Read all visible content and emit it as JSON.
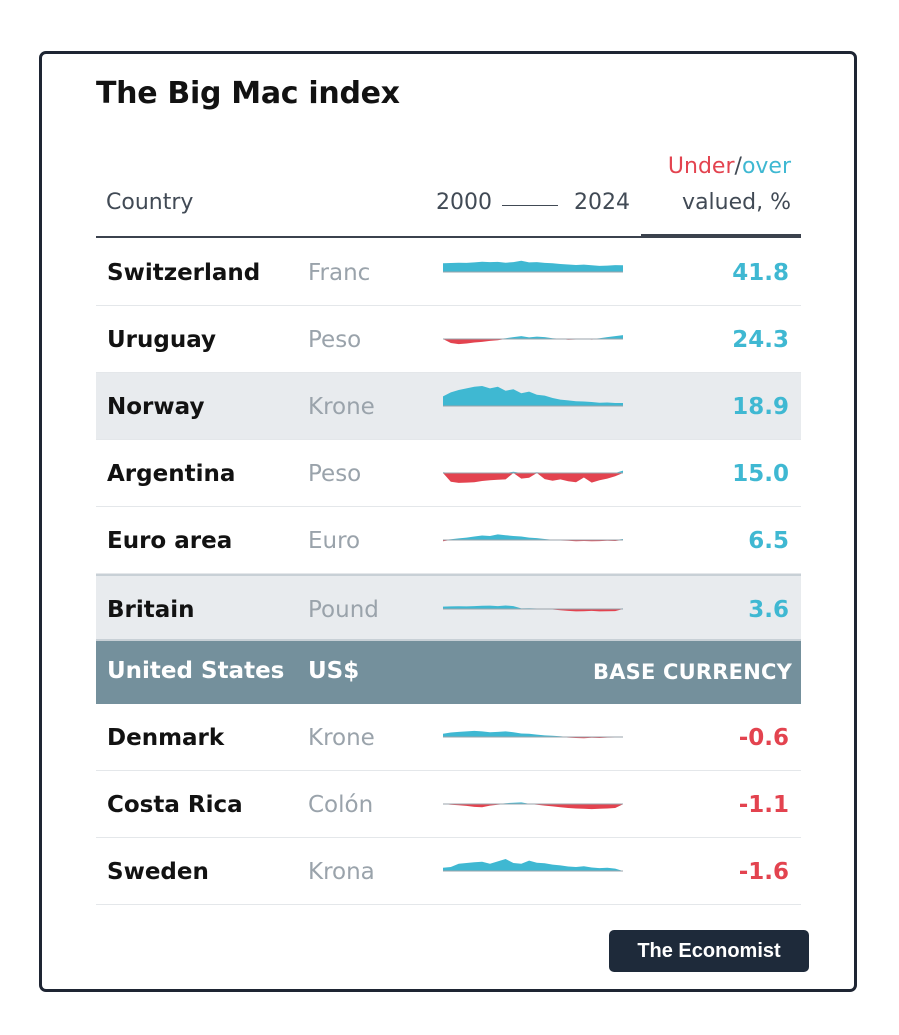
{
  "title": "The Big Mac index",
  "header": {
    "country": "Country",
    "year_start": "2000",
    "year_end": "2024",
    "under": "Under",
    "slash": "/",
    "over": "over",
    "valued": "valued, %"
  },
  "base_row": {
    "country": "United States",
    "currency": "US$",
    "label": "BASE CURRENCY"
  },
  "footer_brand": "The Economist",
  "colors": {
    "over": "#3fb8d2",
    "under": "#e3434f",
    "base_row": "#74909c",
    "badge": "#1e2a3a"
  },
  "chart_data": {
    "type": "table",
    "title": "The Big Mac index",
    "x_range": [
      "2000",
      "2024"
    ],
    "rows": [
      {
        "country": "Switzerland",
        "currency": "Franc",
        "value": "41.8",
        "number": 41.8,
        "trend": [
          55,
          56,
          58,
          57,
          60,
          64,
          62,
          63,
          58,
          62,
          70,
          60,
          62,
          57,
          55,
          50,
          47,
          44,
          46,
          42,
          38,
          40,
          43,
          41.8
        ]
      },
      {
        "country": "Uruguay",
        "currency": "Peso",
        "value": "24.3",
        "number": 24.3,
        "trend": [
          0,
          -25,
          -32,
          -28,
          -22,
          -18,
          -12,
          -8,
          5,
          12,
          18,
          10,
          15,
          12,
          5,
          2,
          -5,
          -3,
          2,
          -4,
          5,
          12,
          18,
          24.3
        ]
      },
      {
        "country": "Norway",
        "currency": "Krone",
        "value": "18.9",
        "number": 18.9,
        "trend": [
          60,
          85,
          100,
          110,
          120,
          125,
          110,
          120,
          95,
          105,
          80,
          90,
          70,
          65,
          50,
          40,
          35,
          30,
          28,
          25,
          20,
          22,
          19,
          18.9
        ]
      },
      {
        "country": "Argentina",
        "currency": "Peso",
        "value": "15.0",
        "number": 15.0,
        "trend": [
          5,
          -55,
          -62,
          -60,
          -58,
          -50,
          -45,
          -42,
          -40,
          8,
          -35,
          -30,
          5,
          -38,
          -48,
          -40,
          -52,
          -58,
          -28,
          -60,
          -45,
          -35,
          -20,
          15.0
        ]
      },
      {
        "country": "Euro area",
        "currency": "Euro",
        "value": "6.5",
        "number": 6.5,
        "trend": [
          -8,
          5,
          10,
          15,
          22,
          28,
          25,
          35,
          30,
          25,
          22,
          15,
          12,
          6,
          2,
          -3,
          -5,
          -8,
          -6,
          -8,
          -7,
          -5,
          -6,
          6.5
        ]
      },
      {
        "country": "Britain",
        "currency": "Pound",
        "value": "3.6",
        "number": 3.6,
        "trend": [
          15,
          16,
          17,
          16,
          18,
          20,
          21,
          18,
          22,
          18,
          4,
          5,
          3,
          2,
          -3,
          -8,
          -12,
          -15,
          -14,
          -12,
          -15,
          -14,
          -13,
          3.6
        ]
      },
      {
        "country": "Denmark",
        "currency": "Krone",
        "value": "-0.6",
        "number": -0.6,
        "trend": [
          20,
          28,
          32,
          35,
          38,
          35,
          30,
          32,
          35,
          30,
          22,
          20,
          15,
          10,
          8,
          5,
          -4,
          -6,
          -8,
          -5,
          -6,
          -4,
          -3,
          -0.6
        ]
      },
      {
        "country": "Costa Rica",
        "currency": "Colón",
        "value": "-1.1",
        "number": -1.1,
        "trend": [
          0,
          -5,
          -8,
          -12,
          -18,
          -20,
          -10,
          -5,
          5,
          8,
          10,
          2,
          -5,
          -10,
          -15,
          -20,
          -25,
          -28,
          -30,
          -32,
          -30,
          -28,
          -25,
          -1.1
        ]
      },
      {
        "country": "Sweden",
        "currency": "Krona",
        "value": "-1.6",
        "number": -1.6,
        "trend": [
          20,
          25,
          45,
          50,
          55,
          58,
          45,
          60,
          75,
          50,
          45,
          65,
          52,
          48,
          40,
          35,
          28,
          25,
          30,
          22,
          18,
          20,
          15,
          -1.6
        ]
      }
    ]
  }
}
